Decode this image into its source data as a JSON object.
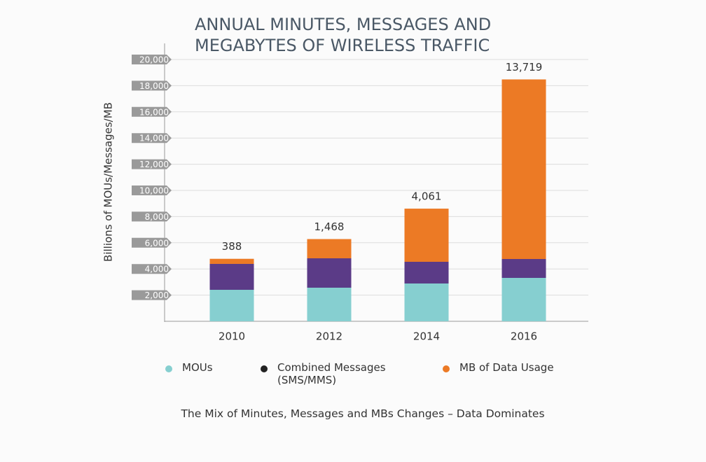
{
  "chart_data": {
    "type": "stacked_bar",
    "title": [
      "ANNUAL MINUTES, MESSAGES AND",
      "MEGABYTES OF WIRELESS TRAFFIC"
    ],
    "y_label": "Billions of MOUs/Messages/MB",
    "caption": "The Mix of Minutes, Messages and MBs Changes – Data Dominates",
    "categories": [
      "2010",
      "2012",
      "2014",
      "2016"
    ],
    "series": [
      {
        "name": "MOUs",
        "color": "#86cfd0",
        "values": [
          2406,
          2567,
          2888,
          3316
        ]
      },
      {
        "name": "Combined Messages (SMS/MMS)",
        "color": "#5b3b87",
        "legend_color": "#222222",
        "values": [
          1980,
          2246,
          1657,
          1443
        ]
      },
      {
        "name": "MB of Data Usage",
        "color": "#ec7a25",
        "values": [
          388,
          1468,
          4061,
          13719
        ],
        "value_labels": [
          "388",
          "1,468",
          "4,061",
          "13,719"
        ]
      }
    ],
    "ylim": [
      0,
      20000
    ],
    "yticks": [
      {
        "value": 2000,
        "label": "2,000"
      },
      {
        "value": 4000,
        "label": "4,000"
      },
      {
        "value": 6000,
        "label": "6,000"
      },
      {
        "value": 8000,
        "label": "8,000"
      },
      {
        "value": 10000,
        "label": "10,000"
      },
      {
        "value": 12000,
        "label": "12,000"
      },
      {
        "value": 14000,
        "label": "14,000"
      },
      {
        "value": 16000,
        "label": "16,000"
      },
      {
        "value": 18000,
        "label": "18,000"
      },
      {
        "value": 20000,
        "label": "20,000"
      }
    ],
    "grid": true
  }
}
